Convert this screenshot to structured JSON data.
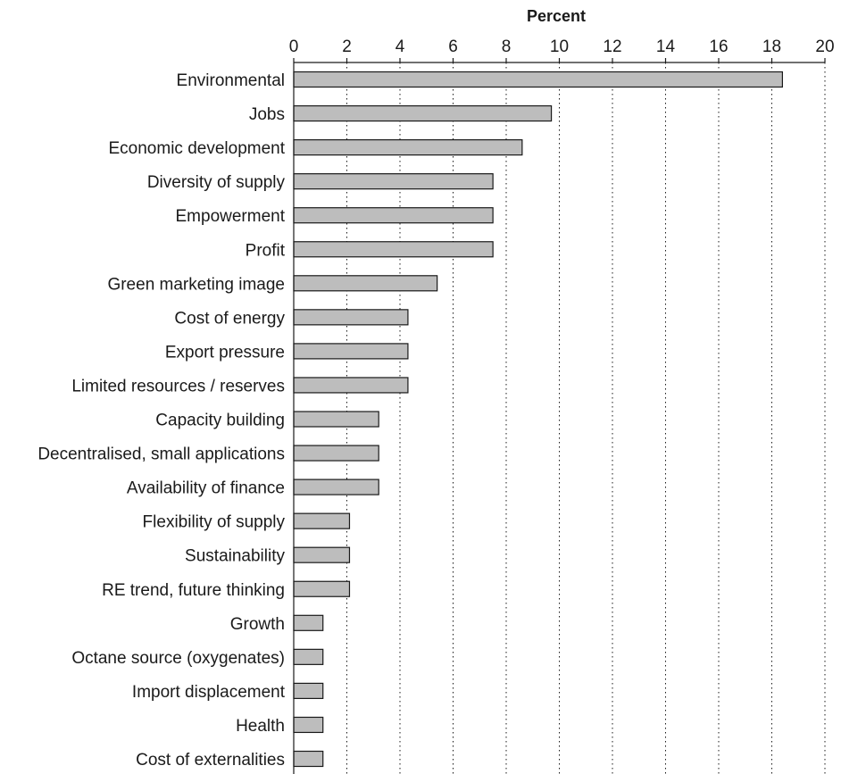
{
  "chart_data": {
    "type": "bar",
    "orientation": "horizontal",
    "title": "",
    "xlabel": "Percent",
    "ylabel": "",
    "xaxis_position": "top",
    "xlim": [
      0,
      20
    ],
    "xticks": [
      0,
      2,
      4,
      6,
      8,
      10,
      12,
      14,
      16,
      18,
      20
    ],
    "grid": "vertical dotted",
    "bar_color": "#bdbdbd",
    "categories": [
      "Environmental",
      "Jobs",
      "Economic development",
      "Diversity of supply",
      "Empowerment",
      "Profit",
      "Green marketing image",
      "Cost of energy",
      "Export pressure",
      "Limited resources / reserves",
      "Capacity building",
      "Decentralised, small applications",
      "Availability of finance",
      "Flexibility of supply",
      "Sustainability",
      "RE trend, future thinking",
      "Growth",
      "Octane source (oxygenates)",
      "Import displacement",
      "Health",
      "Cost of externalities"
    ],
    "values": [
      18.4,
      9.7,
      8.6,
      7.5,
      7.5,
      7.5,
      5.4,
      4.3,
      4.3,
      4.3,
      3.2,
      3.2,
      3.2,
      2.1,
      2.1,
      2.1,
      1.1,
      1.1,
      1.1,
      1.1,
      1.1
    ]
  }
}
